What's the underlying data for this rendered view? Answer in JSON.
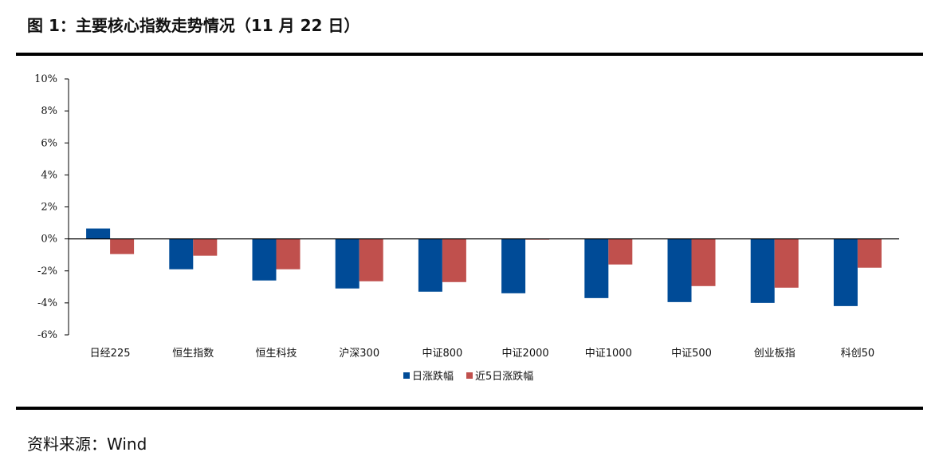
{
  "figure": {
    "title": "图 1：主要核心指数走势情况（11 月 22 日）",
    "source": "资料来源：Wind"
  },
  "chart_data": {
    "type": "bar",
    "categories": [
      "日经225",
      "恒生指数",
      "恒生科技",
      "沪深300",
      "中证800",
      "中证2000",
      "中证1000",
      "中证500",
      "创业板指",
      "科创50"
    ],
    "series": [
      {
        "name": "日涨跌幅",
        "color": "#004b97",
        "values": [
          0.65,
          -1.9,
          -2.6,
          -3.1,
          -3.3,
          -3.4,
          -3.7,
          -3.95,
          -4.0,
          -4.2
        ]
      },
      {
        "name": "近5日涨跌幅",
        "color": "#c0504d",
        "values": [
          -0.95,
          -1.05,
          -1.9,
          -2.65,
          -2.7,
          0.0,
          -1.6,
          -2.95,
          -3.05,
          -1.8
        ]
      }
    ],
    "ylim": [
      -6,
      10
    ],
    "yticks": [
      10,
      8,
      6,
      4,
      2,
      0,
      -2,
      -4,
      -6
    ],
    "ytick_labels": [
      "10%",
      "8%",
      "6%",
      "4%",
      "2%",
      "0%",
      "-2%",
      "-4%",
      "-6%"
    ],
    "legend_position": "bottom-center",
    "grid": false
  }
}
